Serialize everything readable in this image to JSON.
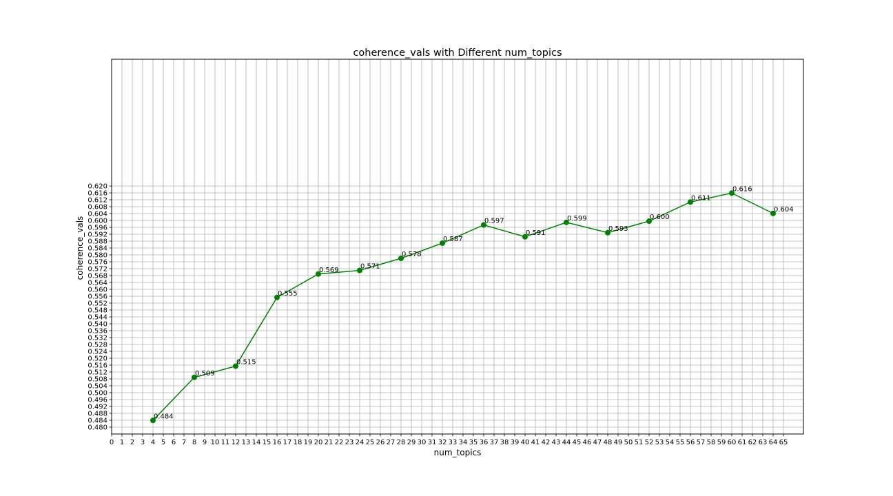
{
  "chart_data": {
    "type": "line",
    "title": "coherence_vals with Different num_topics",
    "xlabel": "num_topics",
    "ylabel": "coherence_vals",
    "xlim": [
      0,
      66
    ],
    "ylim": [
      0.478,
      0.622
    ],
    "x_ticks": [
      0,
      1,
      2,
      3,
      4,
      5,
      6,
      7,
      8,
      9,
      10,
      11,
      12,
      13,
      14,
      15,
      16,
      17,
      18,
      19,
      20,
      21,
      22,
      23,
      24,
      25,
      26,
      27,
      28,
      29,
      30,
      31,
      32,
      33,
      34,
      35,
      36,
      37,
      38,
      39,
      40,
      41,
      42,
      43,
      44,
      45,
      46,
      47,
      48,
      49,
      50,
      51,
      52,
      53,
      54,
      55,
      56,
      57,
      58,
      59,
      60,
      61,
      62,
      63,
      64,
      65
    ],
    "y_ticks": [
      "0.480",
      "0.484",
      "0.488",
      "0.492",
      "0.496",
      "0.500",
      "0.504",
      "0.508",
      "0.512",
      "0.516",
      "0.520",
      "0.524",
      "0.528",
      "0.532",
      "0.536",
      "0.540",
      "0.544",
      "0.548",
      "0.552",
      "0.556",
      "0.560",
      "0.564",
      "0.568",
      "0.572",
      "0.576",
      "0.580",
      "0.584",
      "0.588",
      "0.592",
      "0.596",
      "0.600",
      "0.604",
      "0.608",
      "0.612",
      "0.616",
      "0.620"
    ],
    "grid": true,
    "color": "#008000",
    "x": [
      4,
      8,
      12,
      16,
      20,
      24,
      28,
      32,
      36,
      40,
      44,
      48,
      52,
      56,
      60,
      64
    ],
    "y": [
      0.4839,
      0.5089,
      0.5154,
      0.5553,
      0.5689,
      0.571,
      0.578,
      0.5868,
      0.5974,
      0.5905,
      0.5989,
      0.5929,
      0.5996,
      0.6107,
      0.6159,
      0.6041
    ],
    "labels": [
      "0.484",
      "0.509",
      "0.515",
      "0.555",
      "0.569",
      "0.571",
      "0.578",
      "0.587",
      "0.597",
      "0.591",
      "0.599",
      "0.593",
      "0.600",
      "0.611",
      "0.616",
      "0.604"
    ]
  }
}
